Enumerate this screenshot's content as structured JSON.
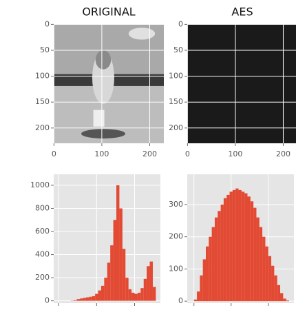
{
  "chart_data": [
    {
      "type": "image",
      "title": "ORIGINAL",
      "xlim": [
        -0.5,
        229.5
      ],
      "ylim": [
        229.5,
        -0.5
      ],
      "xticks": [
        0,
        100,
        200
      ],
      "yticks": [
        0,
        50,
        100,
        150,
        200
      ],
      "grid": true
    },
    {
      "type": "image",
      "title": "AES",
      "xlim": [
        -0.5,
        229.5
      ],
      "ylim": [
        229.5,
        -0.5
      ],
      "xticks": [
        0,
        100,
        200
      ],
      "yticks": [
        0,
        50,
        100,
        150,
        200
      ],
      "grid": true
    },
    {
      "type": "histogram",
      "bins": [
        0,
        8,
        16,
        24,
        32,
        40,
        48,
        56,
        64,
        72,
        80,
        88,
        96,
        104,
        112,
        120,
        128,
        136,
        144,
        152,
        160,
        168,
        176,
        184,
        192,
        200,
        208,
        216,
        224,
        232,
        240,
        248,
        256
      ],
      "values": [
        0,
        0,
        0,
        0,
        2,
        5,
        15,
        20,
        25,
        30,
        35,
        40,
        60,
        90,
        130,
        200,
        330,
        480,
        700,
        1000,
        800,
        450,
        200,
        100,
        70,
        60,
        70,
        110,
        190,
        300,
        340,
        120
      ],
      "color": "#e24a33",
      "xlim": [
        -13,
        268
      ],
      "ylim": [
        -20,
        1095
      ],
      "xticks": [
        0,
        100,
        200
      ],
      "yticks": [
        0,
        200,
        400,
        600,
        800,
        1000
      ],
      "grid": true
    },
    {
      "type": "histogram",
      "bins": [
        0,
        8,
        16,
        24,
        32,
        40,
        48,
        56,
        64,
        72,
        80,
        88,
        96,
        104,
        112,
        120,
        128,
        136,
        144,
        152,
        160,
        168,
        176,
        184,
        192,
        200,
        208,
        216,
        224,
        232,
        240,
        248,
        256
      ],
      "values": [
        5,
        30,
        80,
        130,
        170,
        200,
        230,
        260,
        280,
        300,
        320,
        330,
        340,
        345,
        350,
        345,
        340,
        335,
        325,
        310,
        290,
        260,
        230,
        200,
        170,
        140,
        110,
        80,
        50,
        25,
        8,
        2
      ],
      "color": "#e24a33",
      "xlim": [
        -18,
        269
      ],
      "ylim": [
        -6,
        394
      ],
      "xticks": [
        0,
        100,
        200
      ],
      "yticks": [
        0,
        100,
        200,
        300
      ],
      "grid": true
    }
  ]
}
